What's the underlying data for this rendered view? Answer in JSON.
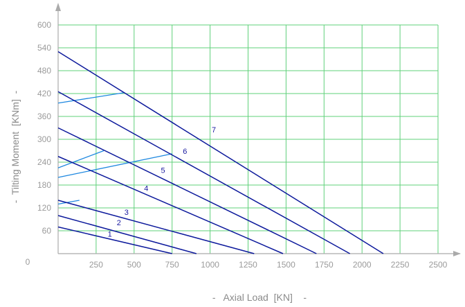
{
  "chart_data": {
    "type": "line",
    "title": "",
    "xlabel": "-   Axial Load  [KN]    -",
    "ylabel": "-  Tilting Moment  [KNm]  -",
    "xlim": [
      0,
      2500
    ],
    "ylim": [
      0,
      600
    ],
    "x_ticks": [
      "0",
      "250",
      "500",
      "750",
      "1000",
      "1250",
      "1500",
      "1750",
      "2000",
      "2250",
      "2500"
    ],
    "y_ticks": [
      "60",
      "120",
      "180",
      "240",
      "300",
      "360",
      "420",
      "480",
      "540",
      "600"
    ],
    "grid": true,
    "grid_color": "#5fd07a",
    "series": [
      {
        "name": "1",
        "color": "#0d1a9c",
        "x": [
          0,
          750
        ],
        "y": [
          70,
          0
        ]
      },
      {
        "name": "2",
        "color": "#0d1a9c",
        "x": [
          0,
          910
        ],
        "y": [
          100,
          0
        ]
      },
      {
        "name": "3",
        "color": "#0d1a9c",
        "x": [
          0,
          1290
        ],
        "y": [
          140,
          0
        ]
      },
      {
        "name": "4",
        "color": "#0d1a9c",
        "x": [
          0,
          1480
        ],
        "y": [
          255,
          0
        ]
      },
      {
        "name": "5",
        "color": "#0d1a9c",
        "x": [
          0,
          1700
        ],
        "y": [
          330,
          0
        ]
      },
      {
        "name": "6",
        "color": "#0d1a9c",
        "x": [
          0,
          1920
        ],
        "y": [
          425,
          0
        ]
      },
      {
        "name": "7",
        "color": "#0d1a9c",
        "x": [
          0,
          2140
        ],
        "y": [
          530,
          0
        ]
      }
    ],
    "limit_lines": [
      {
        "color": "#1e88e0",
        "x": [
          0,
          140
        ],
        "y": [
          130,
          140
        ]
      },
      {
        "color": "#1e88e0",
        "x": [
          0,
          750
        ],
        "y": [
          200,
          262
        ]
      },
      {
        "color": "#1e88e0",
        "x": [
          0,
          300
        ],
        "y": [
          225,
          270
        ]
      },
      {
        "color": "#1e88e0",
        "x": [
          0,
          430
        ],
        "y": [
          395,
          422
        ]
      }
    ],
    "labels": [
      {
        "text": "1",
        "x": 340,
        "y": 45
      },
      {
        "text": "2",
        "x": 400,
        "y": 75
      },
      {
        "text": "3",
        "x": 450,
        "y": 102
      },
      {
        "text": "4",
        "x": 580,
        "y": 165
      },
      {
        "text": "5",
        "x": 690,
        "y": 212
      },
      {
        "text": "6",
        "x": 835,
        "y": 262
      },
      {
        "text": "7",
        "x": 1025,
        "y": 318
      }
    ]
  }
}
